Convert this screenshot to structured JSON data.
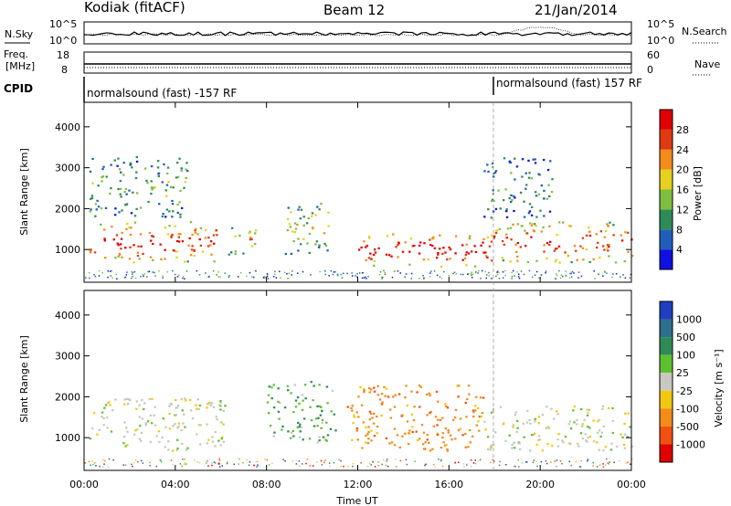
{
  "header": {
    "station": "Kodiak (fitACF)",
    "beam": "Beam 12",
    "date": "21/Jan/2014"
  },
  "panels": {
    "nsky_label": "N.Sky",
    "nsearch_label": "N.Search",
    "nsky_ticks": [
      "10^5",
      "10^0"
    ],
    "nsearch_ticks": [
      "10^5",
      "10^0"
    ],
    "freq_label_1": "Freq.",
    "freq_label_2": "[MHz]",
    "freq_ticks": [
      "18",
      "8"
    ],
    "nave_label": "Nave",
    "nave_ticks": [
      "60",
      "0"
    ],
    "cpid_label": "CPID",
    "cpid_left": "normalsound (fast) -157 RF",
    "cpid_right": "normalsound (fast) 157 RF"
  },
  "chart_data": [
    {
      "type": "heatmap",
      "name": "power",
      "ylabel": "Slant Range [km]",
      "xlabel": "Time UT",
      "x_ticks": [
        "00:00",
        "04:00",
        "08:00",
        "12:00",
        "16:00",
        "20:00",
        "00:00"
      ],
      "y_ticks": [
        1000,
        2000,
        3000,
        4000
      ],
      "ylim": [
        200,
        4600
      ],
      "xlim_hours": [
        0,
        24
      ],
      "colorbar": {
        "label": "Power [dB]",
        "ticks": [
          4,
          8,
          12,
          16,
          20,
          24,
          28
        ],
        "colors": [
          "#1010e0",
          "#1f5fb8",
          "#2e8b57",
          "#7cbf3f",
          "#e6d020",
          "#f28b1a",
          "#e03a10",
          "#e00000"
        ]
      },
      "regions": [
        {
          "t0": 0.2,
          "t1": 5.8,
          "r0": 700,
          "r1": 1700,
          "level": 0.85
        },
        {
          "t0": 0.2,
          "t1": 4.5,
          "r0": 1800,
          "r1": 3300,
          "level": 0.35
        },
        {
          "t0": 6.3,
          "t1": 7.6,
          "r0": 900,
          "r1": 1600,
          "level": 0.55
        },
        {
          "t0": 8.8,
          "t1": 10.8,
          "r0": 900,
          "r1": 2200,
          "level": 0.5
        },
        {
          "t0": 12.0,
          "t1": 18.0,
          "r0": 600,
          "r1": 1400,
          "level": 0.95
        },
        {
          "t0": 17.8,
          "t1": 24.0,
          "r0": 700,
          "r1": 1700,
          "level": 0.8
        },
        {
          "t0": 17.5,
          "t1": 20.5,
          "r0": 1800,
          "r1": 3300,
          "level": 0.3
        }
      ]
    },
    {
      "type": "heatmap",
      "name": "velocity",
      "ylabel": "Slant Range [km]",
      "xlabel": "Time UT",
      "x_ticks": [
        "00:00",
        "04:00",
        "08:00",
        "12:00",
        "16:00",
        "20:00",
        "00:00"
      ],
      "y_ticks": [
        1000,
        2000,
        3000,
        4000
      ],
      "ylim": [
        200,
        4600
      ],
      "xlim_hours": [
        0,
        24
      ],
      "colorbar": {
        "label": "Velocity [m s⁻¹]",
        "ticks": [
          "1000",
          "500",
          "100",
          "25",
          "-25",
          "-100",
          "-500",
          "-1000"
        ],
        "colors": [
          "#1f3fbf",
          "#2e6e8e",
          "#2e8b57",
          "#5ec02e",
          "#c8c8c0",
          "#f2c810",
          "#f28b1a",
          "#f25010",
          "#e00000"
        ]
      },
      "regions": [
        {
          "t0": 0.2,
          "t1": 6.2,
          "r0": 700,
          "r1": 2000,
          "class": "grey"
        },
        {
          "t0": 8.0,
          "t1": 11.0,
          "r0": 900,
          "r1": 2400,
          "class": "green"
        },
        {
          "t0": 11.5,
          "t1": 17.5,
          "r0": 700,
          "r1": 2300,
          "class": "orange"
        },
        {
          "t0": 17.5,
          "t1": 24.0,
          "r0": 700,
          "r1": 1800,
          "class": "grey"
        }
      ]
    }
  ]
}
